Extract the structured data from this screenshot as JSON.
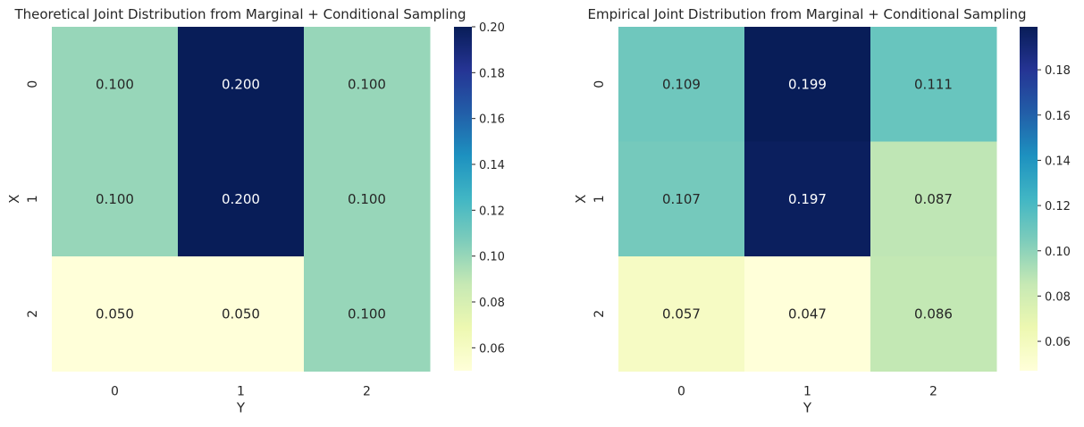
{
  "chart_data": [
    {
      "type": "heatmap",
      "title": "Theoretical Joint Distribution from Marginal + Conditional Sampling",
      "xlabel": "Y",
      "ylabel": "X",
      "x_categories": [
        "0",
        "1",
        "2"
      ],
      "y_categories": [
        "0",
        "1",
        "2"
      ],
      "values": [
        [
          0.1,
          0.2,
          0.1
        ],
        [
          0.1,
          0.2,
          0.1
        ],
        [
          0.05,
          0.05,
          0.1
        ]
      ],
      "annotations": [
        [
          "0.100",
          "0.200",
          "0.100"
        ],
        [
          "0.100",
          "0.200",
          "0.100"
        ],
        [
          "0.050",
          "0.050",
          "0.100"
        ]
      ],
      "colormap": "YlGnBu",
      "vmin": 0.05,
      "vmax": 0.2,
      "colorbar_ticks": [
        "0.06",
        "0.08",
        "0.10",
        "0.12",
        "0.14",
        "0.16",
        "0.18",
        "0.20"
      ],
      "colorbar_tick_values": [
        0.06,
        0.08,
        0.1,
        0.12,
        0.14,
        0.16,
        0.18,
        0.2
      ]
    },
    {
      "type": "heatmap",
      "title": "Empirical Joint Distribution from Marginal + Conditional Sampling",
      "xlabel": "Y",
      "ylabel": "X",
      "x_categories": [
        "0",
        "1",
        "2"
      ],
      "y_categories": [
        "0",
        "1",
        "2"
      ],
      "values": [
        [
          0.109,
          0.199,
          0.111
        ],
        [
          0.107,
          0.197,
          0.087
        ],
        [
          0.057,
          0.047,
          0.086
        ]
      ],
      "annotations": [
        [
          "0.109",
          "0.199",
          "0.111"
        ],
        [
          "0.107",
          "0.197",
          "0.087"
        ],
        [
          "0.057",
          "0.047",
          "0.086"
        ]
      ],
      "colormap": "YlGnBu",
      "vmin": 0.047,
      "vmax": 0.199,
      "colorbar_ticks": [
        "0.06",
        "0.08",
        "0.10",
        "0.12",
        "0.14",
        "0.16",
        "0.18"
      ],
      "colorbar_tick_values": [
        0.06,
        0.08,
        0.1,
        0.12,
        0.14,
        0.16,
        0.18
      ]
    }
  ]
}
